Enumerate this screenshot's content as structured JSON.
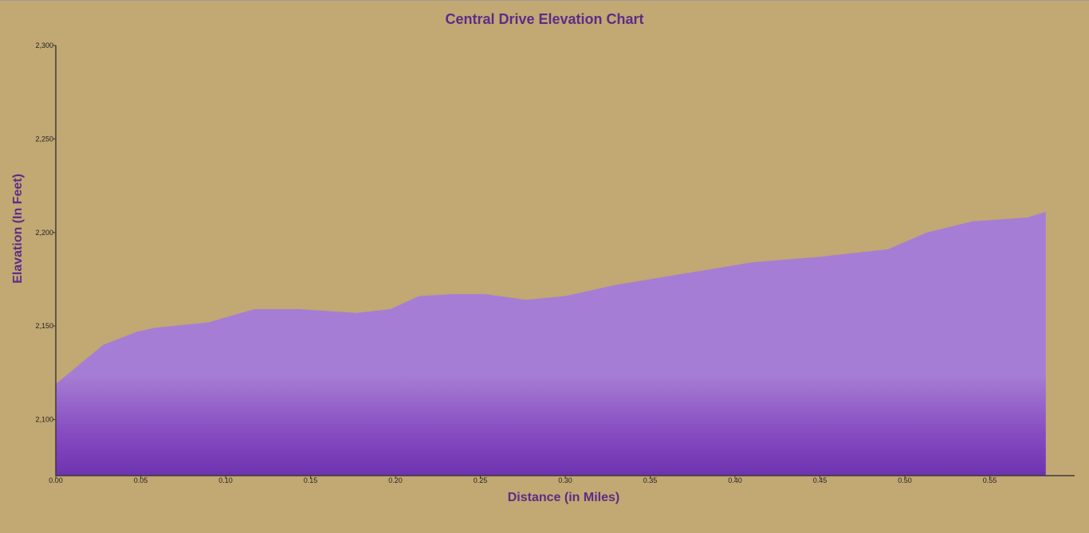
{
  "colors": {
    "background": "#c2a873",
    "title": "#5e2b87",
    "axis_title": "#5e2b87",
    "axis_line": "#3a3a3a",
    "area_top": "#a67dd4",
    "area_bottom": "#6e33b0"
  },
  "chart_data": {
    "type": "area",
    "title": "Central Drive Elevation Chart",
    "xlabel": "Distance (in Miles)",
    "ylabel": "Elavation (In Feet)",
    "xlim": [
      0,
      0.6
    ],
    "ylim": [
      2070,
      2300
    ],
    "x_ticks": [
      "0.00",
      "0.05",
      "0.10",
      "0.15",
      "0.20",
      "0.25",
      "0.30",
      "0.35",
      "0.40",
      "0.45",
      "0.50",
      "0.55"
    ],
    "y_ticks": [
      "2,100",
      "2,150",
      "2,200",
      "2,250",
      "2,300"
    ],
    "grid": false,
    "legend": "none",
    "series": [
      {
        "x": [
          0.0,
          0.028,
          0.048,
          0.058,
          0.09,
          0.117,
          0.143,
          0.177,
          0.197,
          0.214,
          0.233,
          0.253,
          0.277,
          0.3,
          0.33,
          0.37,
          0.41,
          0.45,
          0.49,
          0.513,
          0.54,
          0.572,
          0.583
        ],
        "y": [
          2119,
          2140,
          2147,
          2149,
          2152,
          2159,
          2159,
          2157,
          2159,
          2166,
          2167,
          2167,
          2164,
          2166,
          2172,
          2178,
          2184,
          2187,
          2191,
          2200,
          2206,
          2208,
          2211
        ]
      }
    ]
  }
}
